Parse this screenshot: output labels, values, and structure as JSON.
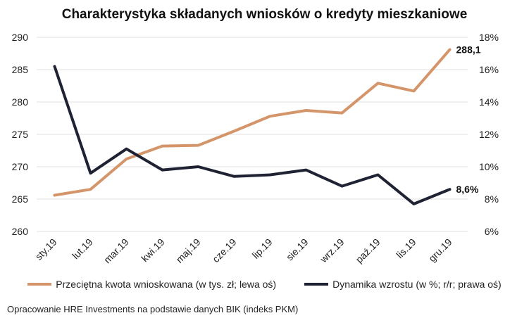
{
  "colors": {
    "amount": "#d4956a",
    "growth": "#1e2233",
    "grid": "#e0e0e0"
  },
  "source": "Opracowanie HRE Investments na podstawie danych BIK (indeks PKM)",
  "chart_data": {
    "type": "line",
    "title": "Charakterystyka składanych wniosków o kredyty mieszkaniowe",
    "categories": [
      "sty.19",
      "lut.19",
      "mar.19",
      "kwi.19",
      "maj.19",
      "cze.19",
      "lip.19",
      "sie.19",
      "wrz.19",
      "paź.19",
      "lis.19",
      "gru.19"
    ],
    "left_axis": {
      "ylim": [
        260,
        290
      ],
      "ticks": [
        260,
        265,
        270,
        275,
        280,
        285,
        290
      ]
    },
    "right_axis": {
      "ylim": [
        6,
        18
      ],
      "ticks": [
        "6%",
        "8%",
        "10%",
        "12%",
        "14%",
        "16%",
        "18%"
      ]
    },
    "series": [
      {
        "name": "Przeciętna kwota wnioskowana (w tys. zł; lewa oś)",
        "axis": "left",
        "values": [
          265.6,
          266.5,
          271.2,
          273.2,
          273.3,
          275.5,
          277.8,
          278.7,
          278.3,
          282.9,
          281.7,
          288.1
        ],
        "end_label": "288,1"
      },
      {
        "name": "Dynamika wzrostu (w %; r/r; prawa oś)",
        "axis": "right",
        "values": [
          16.2,
          9.6,
          11.1,
          9.8,
          10.0,
          9.4,
          9.5,
          9.8,
          8.8,
          9.5,
          7.7,
          8.6
        ],
        "end_label": "8,6%"
      }
    ],
    "grid": "horizontal",
    "legend": "bottom"
  }
}
